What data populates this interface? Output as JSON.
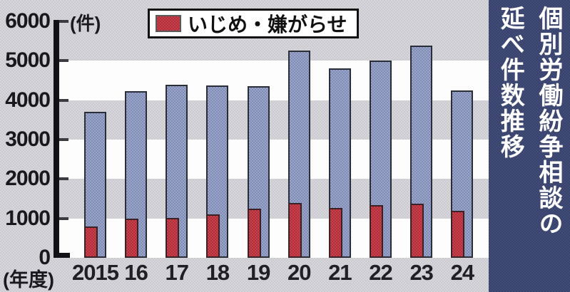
{
  "page_title": "個別労働紛争相談の延べ件数推移",
  "side_title": {
    "line1": "個別労働紛争相談の",
    "line2": "延べ件数推移"
  },
  "legend": {
    "label": "いじめ・嫌がらせ"
  },
  "y_axis": {
    "unit_label": "(件)",
    "ticks": [
      "6000",
      "5000",
      "4000",
      "3000",
      "2000",
      "1000",
      "0"
    ]
  },
  "x_axis": {
    "unit_label": "(年度)"
  },
  "chart_data": {
    "type": "bar",
    "title": "個別労働紛争相談の延べ件数推移",
    "categories": [
      "2015",
      "16",
      "17",
      "18",
      "19",
      "20",
      "21",
      "22",
      "23",
      "24"
    ],
    "series": [
      {
        "name": "延べ件数",
        "color": "#9aa5cb",
        "values": [
          3700,
          4230,
          4400,
          4380,
          4360,
          5260,
          4800,
          5010,
          5380,
          4250
        ]
      },
      {
        "name": "いじめ・嫌がらせ",
        "color": "#c8404a",
        "values": [
          800,
          1000,
          1010,
          1100,
          1250,
          1400,
          1270,
          1330,
          1380,
          1200
        ]
      }
    ],
    "ylim": [
      0,
      6000
    ],
    "y_tick_step": 1000,
    "xlabel": "年度",
    "ylabel": "件",
    "legend_position": "top",
    "grid": "alternating horizontal white/gray bands every 1000"
  },
  "colors": {
    "page_bg": "#d7d7db",
    "stripe_white": "#fdfdfe",
    "bar_blue": "#9aa5cb",
    "bar_red": "#c8404a",
    "bar_outline": "#2a2e38",
    "axis": "#121216",
    "title_strip_bg": "#414c78",
    "title_text": "#ffffff",
    "label_text": "#19191c"
  }
}
